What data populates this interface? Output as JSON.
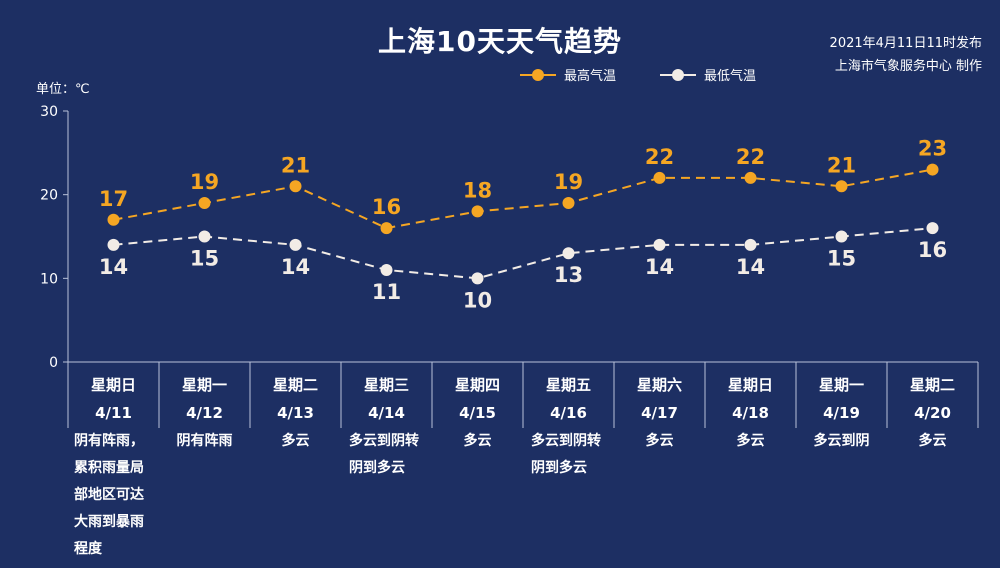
{
  "title": "上海10天天气趋势",
  "publish": {
    "line1": "2021年4月11日11时发布",
    "line2": "上海市气象服务中心 制作"
  },
  "unit_label": "单位：℃",
  "colors": {
    "high": "#f5a623",
    "low": "#f2ece6",
    "background": "#1d2f63",
    "axis": "#b9c2d9"
  },
  "chart_data": {
    "type": "line",
    "categories": [
      "4/11",
      "4/12",
      "4/13",
      "4/14",
      "4/15",
      "4/16",
      "4/17",
      "4/18",
      "4/19",
      "4/20"
    ],
    "weekdays": [
      "星期日",
      "星期一",
      "星期二",
      "星期三",
      "星期四",
      "星期五",
      "星期六",
      "星期日",
      "星期一",
      "星期二"
    ],
    "weather": [
      "阴有阵雨，\n累积雨量局\n部地区可达\n大雨到暴雨\n程度",
      "阴有阵雨",
      "多云",
      "多云到阴转\n阴到多云",
      "多云",
      "多云到阴转\n阴到多云",
      "多云",
      "多云",
      "多云到阴",
      "多云"
    ],
    "series": [
      {
        "name": "最高气温",
        "values": [
          17,
          19,
          21,
          16,
          18,
          19,
          22,
          22,
          21,
          23
        ]
      },
      {
        "name": "最低气温",
        "values": [
          14,
          15,
          14,
          11,
          10,
          13,
          14,
          14,
          15,
          16
        ]
      }
    ],
    "yticks": [
      0,
      10,
      20,
      30
    ],
    "ylim": [
      0,
      30
    ],
    "legend_position": "top-center",
    "grid": false
  }
}
